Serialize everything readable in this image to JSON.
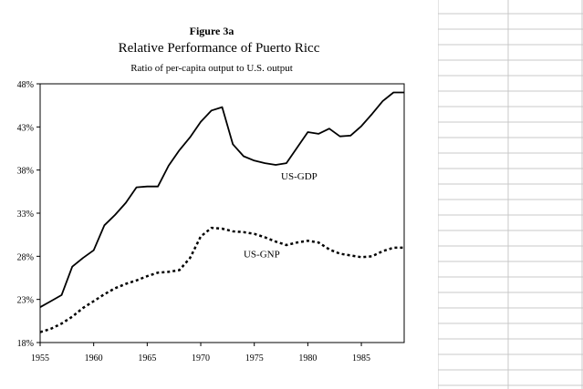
{
  "chart_data": {
    "type": "line",
    "figure_number": "Figure 3a",
    "title": "Relative Performance of Puerto Ricc",
    "subtitle": "Ratio of per-capita output to U.S. output",
    "xlabel": "",
    "ylabel": "",
    "xlim": [
      1955,
      1989
    ],
    "ylim": [
      18,
      48
    ],
    "x_ticks": [
      1955,
      1960,
      1965,
      1970,
      1975,
      1980,
      1985
    ],
    "y_tick_values": [
      18,
      23,
      28,
      33,
      38,
      43,
      48
    ],
    "y_tick_labels": [
      "18%",
      "23%",
      "28%",
      "33%",
      "38%",
      "43%",
      "48%"
    ],
    "grid": false,
    "series": [
      {
        "name": "US-GDP",
        "style": "solid",
        "color": "#000000",
        "label_at": [
          1977.5,
          36.9
        ],
        "x": [
          1955,
          1956,
          1957,
          1958,
          1959,
          1960,
          1961,
          1962,
          1963,
          1964,
          1965,
          1966,
          1967,
          1968,
          1969,
          1970,
          1971,
          1972,
          1973,
          1974,
          1975,
          1976,
          1977,
          1978,
          1979,
          1980,
          1981,
          1982,
          1983,
          1984,
          1985,
          1986,
          1987,
          1988,
          1989
        ],
        "values": [
          22.1,
          22.8,
          23.5,
          26.8,
          27.8,
          28.7,
          31.6,
          32.8,
          34.2,
          36.0,
          36.1,
          36.1,
          38.5,
          40.3,
          41.8,
          43.6,
          44.9,
          45.3,
          41.0,
          39.6,
          39.1,
          38.8,
          38.6,
          38.8,
          40.6,
          42.4,
          42.2,
          42.8,
          41.9,
          42.0,
          43.1,
          44.5,
          46.0,
          47.0,
          47.0
        ]
      },
      {
        "name": "US-GNP",
        "style": "dotted",
        "color": "#000000",
        "label_at": [
          1974,
          27.9
        ],
        "x": [
          1955,
          1956,
          1957,
          1958,
          1959,
          1960,
          1961,
          1962,
          1963,
          1964,
          1965,
          1966,
          1967,
          1968,
          1969,
          1970,
          1971,
          1972,
          1973,
          1974,
          1975,
          1976,
          1977,
          1978,
          1979,
          1980,
          1981,
          1982,
          1983,
          1984,
          1985,
          1986,
          1987,
          1988,
          1989
        ],
        "values": [
          19.2,
          19.6,
          20.2,
          21.0,
          22.0,
          22.8,
          23.6,
          24.3,
          24.8,
          25.2,
          25.7,
          26.1,
          26.2,
          26.4,
          27.8,
          30.3,
          31.3,
          31.2,
          30.9,
          30.8,
          30.6,
          30.2,
          29.7,
          29.3,
          29.6,
          29.8,
          29.6,
          28.8,
          28.3,
          28.1,
          27.9,
          28.0,
          28.6,
          29.0,
          29.0
        ]
      }
    ]
  }
}
